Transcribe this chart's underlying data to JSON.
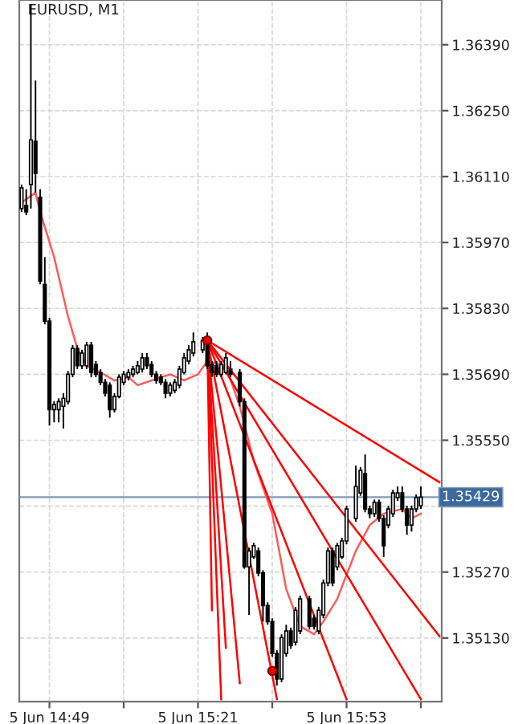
{
  "chart_data": {
    "type": "candlestick",
    "title": "EURUSD, M1",
    "color": "#000000",
    "categories": [
      null,
      null,
      null,
      null,
      null,
      null,
      "5 Jun 14:49",
      null,
      null,
      null,
      null,
      null,
      null,
      null,
      null,
      null,
      null,
      null,
      null,
      null,
      null,
      null,
      null,
      null,
      null,
      null,
      null,
      null,
      null,
      null,
      null,
      null,
      null,
      null,
      null,
      null,
      null,
      null,
      "5 Jun 15:21",
      null,
      null,
      null,
      null,
      null,
      null,
      null,
      null,
      null,
      null,
      null,
      null,
      null,
      null,
      null,
      null,
      null,
      null,
      null,
      null,
      null,
      null,
      null,
      null,
      null,
      null,
      null,
      null,
      null,
      null,
      null,
      "5 Jun 15:53",
      null,
      null,
      null,
      null,
      null,
      null,
      null,
      null,
      null,
      null,
      null,
      null,
      null,
      null,
      null,
      null,
      null,
      null,
      null,
      null
    ],
    "ohlc": [
      [
        1.36042,
        1.36093,
        1.36035,
        1.36086
      ],
      [
        1.36049,
        1.36083,
        1.36028,
        1.36035
      ],
      [
        1.36093,
        1.36475,
        1.36042,
        1.36188
      ],
      [
        1.36185,
        1.36314,
        1.36076,
        1.36117
      ],
      [
        1.36066,
        1.36083,
        1.35881,
        1.35888
      ],
      [
        1.35881,
        1.35939,
        1.35796,
        1.35803
      ],
      [
        1.35803,
        1.3581,
        1.35581,
        1.35615
      ],
      [
        1.35615,
        1.35633,
        1.35588,
        1.35626
      ],
      [
        1.35615,
        1.35639,
        1.35588,
        1.35632
      ],
      [
        1.35622,
        1.3565,
        1.35575,
        1.35639
      ],
      [
        1.35632,
        1.35697,
        1.35626,
        1.3569
      ],
      [
        1.3569,
        1.35752,
        1.35684,
        1.35745
      ],
      [
        1.35745,
        1.35752,
        1.35701,
        1.35708
      ],
      [
        1.35708,
        1.35742,
        1.35701,
        1.35735
      ],
      [
        1.35708,
        1.35759,
        1.35701,
        1.35752
      ],
      [
        1.35752,
        1.35759,
        1.35684,
        1.35694
      ],
      [
        1.35711,
        1.35718,
        1.35684,
        1.3569
      ],
      [
        1.35694,
        1.35701,
        1.35667,
        1.35673
      ],
      [
        1.35673,
        1.3568,
        1.35643,
        1.3565
      ],
      [
        1.35667,
        1.35673,
        1.35598,
        1.35615
      ],
      [
        1.35615,
        1.3565,
        1.35609,
        1.35643
      ],
      [
        1.35643,
        1.3569,
        1.35639,
        1.35684
      ],
      [
        1.35673,
        1.35697,
        1.35667,
        1.3569
      ],
      [
        1.35684,
        1.35701,
        1.35677,
        1.35694
      ],
      [
        1.3569,
        1.35708,
        1.35684,
        1.35701
      ],
      [
        1.35694,
        1.35718,
        1.3569,
        1.35708
      ],
      [
        1.35701,
        1.35735,
        1.35694,
        1.35725
      ],
      [
        1.35725,
        1.35735,
        1.35701,
        1.35708
      ],
      [
        1.35711,
        1.35718,
        1.35684,
        1.3569
      ],
      [
        1.3569,
        1.35697,
        1.3567,
        1.35677
      ],
      [
        1.35684,
        1.3569,
        1.35667,
        1.35673
      ],
      [
        1.35673,
        1.3568,
        1.35639,
        1.3565
      ],
      [
        1.3565,
        1.35673,
        1.35643,
        1.35667
      ],
      [
        1.35656,
        1.3568,
        1.3565,
        1.35673
      ],
      [
        1.35667,
        1.35708,
        1.3566,
        1.35701
      ],
      [
        1.35694,
        1.35735,
        1.3569,
        1.35725
      ],
      [
        1.35718,
        1.35752,
        1.35711,
        1.35742
      ],
      [
        1.35735,
        1.35779,
        1.35728,
        1.35759
      ],
      null,
      [
        1.35742,
        1.35769,
        1.35735,
        1.35762
      ],
      [
        1.35759,
        1.35779,
        1.35701,
        1.35708
      ],
      [
        1.35711,
        1.35718,
        1.35684,
        1.35694
      ],
      [
        1.35708,
        1.35718,
        1.35684,
        1.3569
      ],
      [
        1.3569,
        1.35718,
        1.35684,
        1.35711
      ],
      [
        1.35694,
        1.35735,
        1.3569,
        1.35725
      ],
      [
        1.35701,
        1.35718,
        1.35684,
        1.3569
      ],
      null,
      [
        1.35694,
        1.35701,
        1.35622,
        1.35632
      ],
      [
        1.35632,
        1.35639,
        1.35277,
        1.35281
      ],
      [
        1.35281,
        1.35322,
        1.35179,
        1.35315
      ],
      [
        1.35302,
        1.35332,
        1.35298,
        1.35326
      ],
      [
        1.35315,
        1.35322,
        1.35261,
        1.35268
      ],
      [
        1.35268,
        1.35274,
        1.35165,
        1.35199
      ],
      [
        1.35199,
        1.35206,
        1.35158,
        1.35165
      ],
      [
        1.35165,
        1.35172,
        1.3509,
        1.35097
      ],
      [
        1.35097,
        1.35104,
        1.35029,
        1.35043
      ],
      [
        1.35043,
        1.35138,
        1.35036,
        1.35131
      ],
      [
        1.35097,
        1.35158,
        1.3509,
        1.35145
      ],
      [
        1.35145,
        1.35152,
        1.35107,
        1.35114
      ],
      [
        1.35121,
        1.35196,
        1.35114,
        1.35189
      ],
      [
        1.35145,
        1.3522,
        1.35138,
        1.35213
      ],
      null,
      [
        1.35213,
        1.3522,
        1.35148,
        1.35155
      ],
      [
        1.35172,
        1.35179,
        1.35148,
        1.35155
      ],
      [
        1.35145,
        1.35196,
        1.35138,
        1.35189
      ],
      [
        1.35179,
        1.35254,
        1.35172,
        1.35247
      ],
      [
        1.35247,
        1.35322,
        1.3524,
        1.35315
      ],
      [
        1.35315,
        1.35322,
        1.3524,
        1.35247
      ],
      [
        1.35281,
        1.35332,
        1.35274,
        1.35326
      ],
      [
        1.35302,
        1.35343,
        1.35298,
        1.35336
      ],
      [
        1.35336,
        1.35411,
        1.35329,
        1.35404
      ],
      null,
      [
        1.35384,
        1.35496,
        1.35377,
        1.35452
      ],
      [
        1.35438,
        1.35493,
        1.35432,
        1.35486
      ],
      [
        1.35479,
        1.3552,
        1.35397,
        1.35404
      ],
      [
        1.35404,
        1.35411,
        1.35384,
        1.35394
      ],
      [
        1.35394,
        1.35424,
        1.35387,
        1.35418
      ],
      [
        1.35418,
        1.35424,
        1.35377,
        1.35384
      ],
      [
        1.35384,
        1.35391,
        1.35302,
        1.35326
      ],
      [
        1.3537,
        1.35411,
        1.35363,
        1.35404
      ],
      [
        1.35394,
        1.35445,
        1.35387,
        1.35438
      ],
      [
        1.35428,
        1.35452,
        1.35421,
        1.35438
      ],
      [
        1.35438,
        1.35452,
        1.35397,
        1.35404
      ],
      [
        1.35404,
        1.35411,
        1.35349,
        1.3537
      ],
      [
        1.3537,
        1.35411,
        1.35356,
        1.35404
      ],
      [
        1.35404,
        1.35435,
        1.35397,
        1.35428
      ],
      [
        1.35411,
        1.35452,
        1.35404,
        1.35429
      ],
      null,
      null,
      null,
      null
    ],
    "series": [
      {
        "type": "line",
        "color": "#ff5a5a",
        "values": [
          1.36055,
          null,
          null,
          1.36076,
          1.36035,
          null,
          null,
          1.35939,
          null,
          null,
          1.35813,
          null,
          1.35745,
          null,
          1.35708,
          null,
          null,
          1.35694,
          null,
          null,
          1.35677,
          null,
          null,
          1.35684,
          null,
          1.35667,
          null,
          null,
          1.35677,
          null,
          null,
          null,
          1.3569,
          null,
          null,
          1.35677,
          null,
          null,
          1.3569,
          null,
          1.35718,
          null,
          null,
          null,
          1.35708,
          null,
          null,
          1.35622,
          null,
          null,
          1.35506,
          null,
          null,
          null,
          1.35394,
          null,
          null,
          1.35234,
          null,
          null,
          1.35155,
          null,
          null,
          1.35138,
          null,
          1.35165,
          null,
          null,
          1.35213,
          null,
          null,
          null,
          1.35315,
          null,
          null,
          1.3537,
          null,
          null,
          1.35394,
          null,
          null,
          null,
          1.35404,
          null,
          1.35384,
          null,
          1.35394,
          null,
          null,
          null,
          null
        ]
      },
      {
        "type": "line",
        "color": "#ff0000",
        "values": [
          null,
          null,
          null,
          null,
          null,
          null,
          null,
          null,
          null,
          null,
          null,
          null,
          null,
          null,
          null,
          null,
          null,
          null,
          null,
          null,
          null,
          null,
          null,
          null,
          null,
          null,
          null,
          null,
          null,
          null,
          null,
          null,
          null,
          null,
          null,
          null,
          null,
          null,
          null,
          null,
          1.35762,
          1.35189,
          null,
          null,
          null,
          null,
          null,
          null,
          null,
          null,
          null,
          null,
          null,
          null,
          null,
          null,
          null,
          null,
          null,
          null,
          null,
          null,
          null,
          null,
          null,
          null,
          null,
          null,
          null,
          null,
          null,
          null,
          null,
          null,
          null,
          null,
          null,
          null,
          null,
          null,
          null,
          null,
          null,
          null,
          null,
          null,
          null,
          null,
          null,
          null,
          null
        ]
      },
      {
        "type": "line",
        "color": "#ff0000",
        "values": [
          null,
          null,
          null,
          null,
          null,
          null,
          null,
          null,
          null,
          null,
          null,
          null,
          null,
          null,
          null,
          null,
          null,
          null,
          null,
          null,
          null,
          null,
          null,
          null,
          null,
          null,
          null,
          null,
          null,
          null,
          null,
          null,
          null,
          null,
          null,
          null,
          null,
          null,
          null,
          null,
          1.35762,
          null,
          null,
          1.35,
          null,
          null,
          null,
          null,
          null,
          null,
          null,
          null,
          null,
          null,
          null,
          null,
          null,
          null,
          null,
          null,
          null,
          null,
          null,
          null,
          null,
          null,
          null,
          null,
          null,
          null,
          null,
          null,
          null,
          null,
          null,
          null,
          null,
          null,
          null,
          null,
          null,
          null,
          null,
          null,
          null,
          null,
          null,
          null,
          null,
          null,
          null
        ]
      },
      {
        "type": "line",
        "color": "#ff0000",
        "values": [
          null,
          null,
          null,
          null,
          null,
          null,
          null,
          null,
          null,
          null,
          null,
          null,
          null,
          null,
          null,
          null,
          null,
          null,
          null,
          null,
          null,
          null,
          null,
          null,
          null,
          null,
          null,
          null,
          null,
          null,
          null,
          null,
          null,
          null,
          null,
          null,
          null,
          null,
          null,
          null,
          1.35762,
          null,
          null,
          null,
          1.35109,
          null,
          null,
          null,
          null,
          null,
          null,
          null,
          null,
          null,
          null,
          null,
          null,
          null,
          null,
          null,
          null,
          null,
          null,
          null,
          null,
          null,
          null,
          null,
          null,
          null,
          null,
          null,
          null,
          null,
          null,
          null,
          null,
          null,
          null,
          null,
          null,
          null,
          null,
          null,
          null,
          null,
          null,
          null,
          null,
          null,
          null
        ]
      },
      {
        "type": "line",
        "color": "#ff0000",
        "values": [
          null,
          null,
          null,
          null,
          null,
          null,
          null,
          null,
          null,
          null,
          null,
          null,
          null,
          null,
          null,
          null,
          null,
          null,
          null,
          null,
          null,
          null,
          null,
          null,
          null,
          null,
          null,
          null,
          null,
          null,
          null,
          null,
          null,
          null,
          null,
          null,
          null,
          null,
          null,
          null,
          1.35762,
          null,
          null,
          null,
          null,
          null,
          null,
          1.35034,
          null,
          null,
          null,
          null,
          null,
          null,
          null,
          null,
          null,
          null,
          null,
          null,
          null,
          null,
          null,
          null,
          null,
          null,
          null,
          null,
          null,
          null,
          null,
          null,
          null,
          null,
          null,
          null,
          null,
          null,
          null,
          null,
          null,
          null,
          null,
          null,
          null,
          null,
          null,
          null,
          null,
          null,
          null
        ]
      },
      {
        "type": "line",
        "color": "#ff0000",
        "values": [
          null,
          null,
          null,
          null,
          null,
          null,
          null,
          null,
          null,
          null,
          null,
          null,
          null,
          null,
          null,
          null,
          null,
          null,
          null,
          null,
          null,
          null,
          null,
          null,
          null,
          null,
          null,
          null,
          null,
          null,
          null,
          null,
          null,
          null,
          null,
          null,
          null,
          null,
          null,
          null,
          1.35762,
          null,
          null,
          null,
          null,
          null,
          null,
          null,
          null,
          null,
          null,
          null,
          null,
          null,
          null,
          1.35,
          null,
          null,
          null,
          null,
          null,
          null,
          null,
          null,
          null,
          null,
          null,
          null,
          null,
          null,
          null,
          null,
          null,
          null,
          null,
          null,
          null,
          null,
          null,
          null,
          null,
          null,
          null,
          null,
          null,
          null,
          null,
          null,
          null,
          null,
          null
        ]
      },
      {
        "type": "line",
        "color": "#ff0000",
        "values": [
          null,
          null,
          null,
          null,
          null,
          null,
          null,
          null,
          null,
          null,
          null,
          null,
          null,
          null,
          null,
          null,
          null,
          null,
          null,
          null,
          null,
          null,
          null,
          null,
          null,
          null,
          null,
          null,
          null,
          null,
          null,
          null,
          null,
          null,
          null,
          null,
          null,
          null,
          null,
          null,
          1.35762,
          null,
          null,
          null,
          null,
          null,
          null,
          null,
          null,
          null,
          null,
          null,
          null,
          null,
          null,
          null,
          null,
          null,
          null,
          null,
          null,
          null,
          null,
          null,
          null,
          null,
          null,
          null,
          null,
          null,
          1.35,
          null,
          null,
          null,
          null,
          null,
          null,
          null,
          null,
          null,
          null,
          null,
          null,
          null,
          null,
          null,
          null,
          null,
          null,
          null,
          null
        ]
      },
      {
        "type": "line",
        "color": "#ff0000",
        "values": [
          null,
          null,
          null,
          null,
          null,
          null,
          null,
          null,
          null,
          null,
          null,
          null,
          null,
          null,
          null,
          null,
          null,
          null,
          null,
          null,
          null,
          null,
          null,
          null,
          null,
          null,
          null,
          null,
          null,
          null,
          null,
          null,
          null,
          null,
          null,
          null,
          null,
          null,
          null,
          null,
          1.35762,
          null,
          null,
          null,
          null,
          null,
          null,
          null,
          null,
          null,
          null,
          null,
          null,
          null,
          null,
          null,
          null,
          null,
          null,
          null,
          null,
          null,
          null,
          null,
          null,
          null,
          null,
          null,
          null,
          null,
          null,
          null,
          null,
          null,
          null,
          null,
          null,
          null,
          null,
          null,
          null,
          null,
          null,
          null,
          null,
          null,
          1.35,
          null,
          null,
          null,
          null
        ]
      },
      {
        "type": "line",
        "color": "#ff0000",
        "values": [
          null,
          null,
          null,
          null,
          null,
          null,
          null,
          null,
          null,
          null,
          null,
          null,
          null,
          null,
          null,
          null,
          null,
          null,
          null,
          null,
          null,
          null,
          null,
          null,
          null,
          null,
          null,
          null,
          null,
          null,
          null,
          null,
          null,
          null,
          null,
          null,
          null,
          null,
          null,
          null,
          1.35762,
          null,
          null,
          null,
          null,
          null,
          null,
          null,
          null,
          null,
          null,
          null,
          null,
          null,
          null,
          null,
          null,
          null,
          null,
          null,
          null,
          null,
          null,
          null,
          null,
          null,
          null,
          null,
          null,
          null,
          null,
          null,
          null,
          null,
          null,
          null,
          null,
          null,
          null,
          null,
          null,
          null,
          null,
          null,
          null,
          null,
          null,
          null,
          null,
          null,
          1.35134
        ]
      },
      {
        "type": "line",
        "color": "#ff0000",
        "values": [
          null,
          null,
          null,
          null,
          null,
          null,
          null,
          null,
          null,
          null,
          null,
          null,
          null,
          null,
          null,
          null,
          null,
          null,
          null,
          null,
          null,
          null,
          null,
          null,
          null,
          null,
          null,
          null,
          null,
          null,
          null,
          null,
          null,
          null,
          null,
          null,
          null,
          null,
          null,
          null,
          1.35762,
          null,
          null,
          null,
          null,
          null,
          null,
          null,
          null,
          null,
          null,
          null,
          null,
          null,
          null,
          null,
          null,
          null,
          null,
          null,
          null,
          null,
          null,
          null,
          null,
          null,
          null,
          null,
          null,
          null,
          null,
          null,
          null,
          null,
          null,
          null,
          null,
          null,
          null,
          null,
          null,
          null,
          null,
          null,
          null,
          null,
          null,
          null,
          null,
          null,
          1.35461
        ]
      },
      {
        "type": "scatter",
        "color": "#ff0000",
        "marker": "circle",
        "values": [
          null,
          null,
          null,
          null,
          null,
          null,
          null,
          null,
          null,
          null,
          null,
          null,
          null,
          null,
          null,
          null,
          null,
          null,
          null,
          null,
          null,
          null,
          null,
          null,
          null,
          null,
          null,
          null,
          null,
          null,
          null,
          null,
          null,
          null,
          null,
          null,
          null,
          null,
          null,
          null,
          1.35762,
          null,
          null,
          null,
          null,
          null,
          null,
          null,
          null,
          null,
          null,
          null,
          null,
          null,
          1.3506,
          null,
          null,
          null,
          null,
          null,
          null,
          null,
          null,
          null,
          null,
          null,
          null,
          null,
          null,
          null,
          null,
          null,
          null,
          null,
          null,
          null,
          null,
          null,
          null,
          null,
          null,
          null,
          null,
          null,
          null,
          null,
          null,
          null,
          null,
          null,
          null
        ]
      }
    ],
    "ref_lines": [
      {
        "axis": "y",
        "value": 1.35429,
        "label": "1.35429",
        "color": "#7f9ab5"
      }
    ],
    "ylim": [
      1.34995,
      1.36485
    ],
    "yticks": [
      {
        "value": 1.3513,
        "label": "1.35130"
      },
      {
        "value": 1.3527,
        "label": "1.35270"
      },
      {
        "value": 1.3541,
        "label": null
      },
      {
        "value": 1.3555,
        "label": "1.35550"
      },
      {
        "value": 1.3569,
        "label": "1.35690"
      },
      {
        "value": 1.3583,
        "label": "1.35830"
      },
      {
        "value": 1.3597,
        "label": "1.35970"
      },
      {
        "value": 1.3611,
        "label": "1.36110"
      },
      {
        "value": 1.3625,
        "label": "1.36250"
      },
      {
        "value": 1.3639,
        "label": "1.36390"
      }
    ],
    "grid": true,
    "marker": "none",
    "line_style": "solid"
  }
}
